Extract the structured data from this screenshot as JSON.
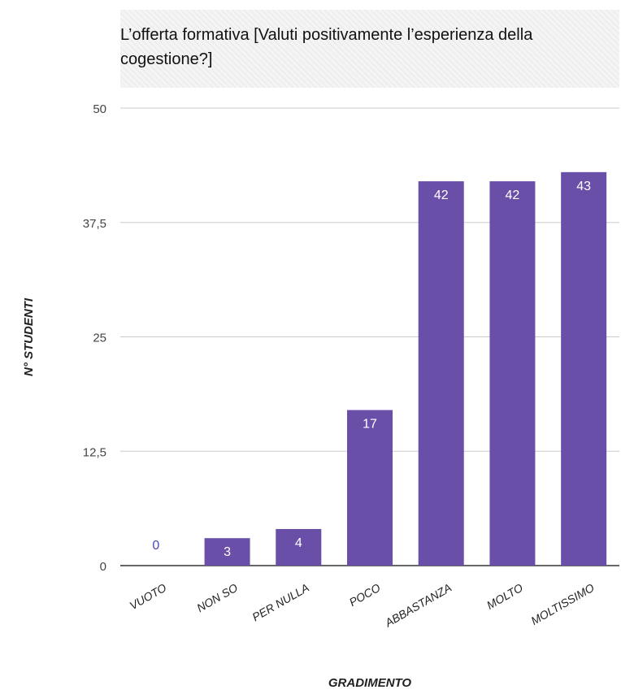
{
  "chart_data": {
    "type": "bar",
    "title": "L’offerta formativa [Valuti positivamente l’esperienza della cogestione?]",
    "xlabel": "GRADIMENTO",
    "ylabel": "N° STUDENTI",
    "categories": [
      "VUOTO",
      "NON SO",
      "PER NULLA",
      "POCO",
      "ABBASTANZA",
      "MOLTO",
      "MOLTISSIMO"
    ],
    "values": [
      0,
      3,
      4,
      17,
      42,
      42,
      43
    ],
    "yticks": [
      "0",
      "12,5",
      "25",
      "37,5",
      "50"
    ],
    "ylim": [
      0,
      50
    ],
    "grid": true,
    "colors": {
      "bar": "#6a4fa8",
      "label_inside": "#ffffff",
      "label_outside": "#4b47c4",
      "grid": "#cccccc",
      "axis": "#333333"
    }
  }
}
